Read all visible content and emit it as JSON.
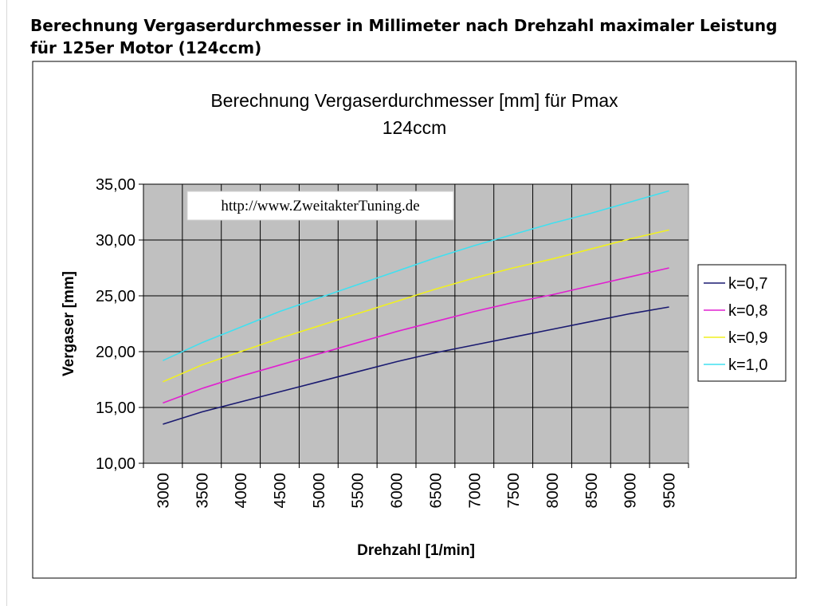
{
  "page": {
    "heading": "Berechnung Vergaserdurchmesser in Millimeter nach Drehzahl maximaler Leistung für 125er Motor (124ccm)"
  },
  "chart_data": {
    "type": "line",
    "title_line1": "Berechnung Vergaserdurchmesser [mm] für Pmax",
    "title_line2": "124ccm",
    "xlabel": "Drehzahl [1/min]",
    "ylabel": "Vergaser [mm]",
    "watermark": "http://www.ZweitakterTuning.de",
    "x": [
      3000,
      3500,
      4000,
      4500,
      5000,
      5500,
      6000,
      6500,
      7000,
      7500,
      8000,
      8500,
      9000,
      9500
    ],
    "x_tick_labels": [
      "3000",
      "3500",
      "4000",
      "4500",
      "5000",
      "5500",
      "6000",
      "6500",
      "7000",
      "7500",
      "8000",
      "8500",
      "9000",
      "9500"
    ],
    "ylim": [
      10,
      35
    ],
    "y_ticks": [
      10,
      15,
      20,
      25,
      30,
      35
    ],
    "y_tick_labels": [
      "10,00",
      "15,00",
      "20,00",
      "25,00",
      "30,00",
      "35,00"
    ],
    "grid": true,
    "legend_position": "right",
    "series": [
      {
        "name": "k=0,7",
        "color": "#1a1a70",
        "values": [
          13.5,
          14.6,
          15.5,
          16.4,
          17.3,
          18.2,
          19.1,
          19.9,
          20.6,
          21.3,
          22.0,
          22.7,
          23.4,
          24.0
        ]
      },
      {
        "name": "k=0,8",
        "color": "#e020d0",
        "values": [
          15.4,
          16.7,
          17.8,
          18.8,
          19.8,
          20.8,
          21.8,
          22.7,
          23.6,
          24.4,
          25.1,
          25.9,
          26.7,
          27.5
        ]
      },
      {
        "name": "k=0,9",
        "color": "#f0f020",
        "values": [
          17.3,
          18.8,
          20.0,
          21.2,
          22.3,
          23.4,
          24.5,
          25.6,
          26.6,
          27.5,
          28.3,
          29.2,
          30.1,
          30.9
        ]
      },
      {
        "name": "k=1,0",
        "color": "#40e0f0",
        "values": [
          19.2,
          20.8,
          22.2,
          23.6,
          24.8,
          26.0,
          27.2,
          28.4,
          29.5,
          30.5,
          31.5,
          32.4,
          33.4,
          34.4
        ]
      }
    ]
  }
}
